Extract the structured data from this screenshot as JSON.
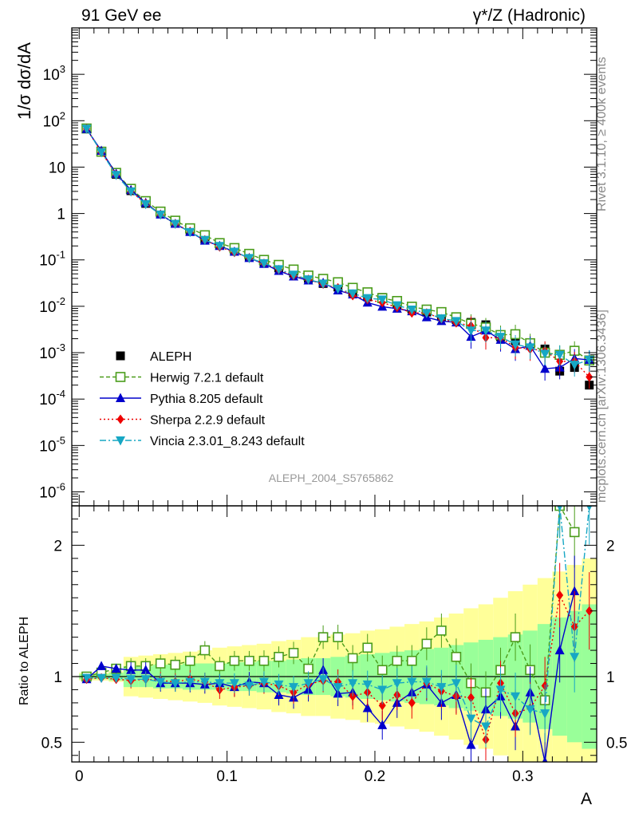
{
  "header": {
    "left": "91 GeV ee",
    "right": "γ*/Z (Hadronic)"
  },
  "side_text": {
    "rivet": "Rivet 3.1.10, ≥ 400k events",
    "mcplots": "mcplots.cern.ch [arXiv:1306.3436]"
  },
  "watermark": "ALEPH_2004_S5765862",
  "colors": {
    "data": "#000000",
    "herwig": "#4a9c1a",
    "pythia": "#0000cc",
    "sherpa": "#ee0000",
    "vincia": "#17a7c4",
    "band_outer": "#ffff99",
    "band_inner": "#99ff99"
  },
  "chart_data": [
    {
      "type": "scatter",
      "panel": "main",
      "ylabel": "1/σ  dσ/dA",
      "yscale": "log",
      "ylim": [
        5e-07,
        10000.0
      ],
      "xlim": [
        -0.005,
        0.35
      ],
      "y_tick_labels": [
        "10^-6",
        "10^-5",
        "10^-4",
        "10^-3",
        "10^-2",
        "10^-1",
        "1",
        "10",
        "10^2",
        "10^3"
      ],
      "x": [
        0.005,
        0.015,
        0.025,
        0.035,
        0.045,
        0.055,
        0.065,
        0.075,
        0.085,
        0.095,
        0.105,
        0.115,
        0.125,
        0.135,
        0.145,
        0.155,
        0.165,
        0.175,
        0.185,
        0.195,
        0.205,
        0.215,
        0.225,
        0.235,
        0.245,
        0.255,
        0.265,
        0.275,
        0.285,
        0.295,
        0.305,
        0.315,
        0.325,
        0.335,
        0.345
      ],
      "series": [
        {
          "name": "ALEPH",
          "style": "data",
          "values": [
            68,
            21,
            7,
            3.1,
            1.65,
            1.0,
            0.63,
            0.42,
            0.28,
            0.21,
            0.158,
            0.118,
            0.088,
            0.067,
            0.052,
            0.04,
            0.031,
            0.026,
            0.02,
            0.016,
            0.0155,
            0.011,
            0.0088,
            0.0075,
            0.006,
            0.0052,
            0.0045,
            0.004,
            0.0022,
            0.0018,
            0.0016,
            0.0012,
            0.0004,
            0.00048,
            0.0002
          ]
        },
        {
          "name": "Herwig 7.2.1 default",
          "style": "herwig",
          "values": [
            68,
            21.5,
            7.5,
            3.4,
            1.85,
            1.1,
            0.7,
            0.48,
            0.34,
            0.23,
            0.18,
            0.135,
            0.1,
            0.078,
            0.062,
            0.046,
            0.039,
            0.033,
            0.025,
            0.02,
            0.015,
            0.013,
            0.0098,
            0.0085,
            0.0075,
            0.0058,
            0.0042,
            0.0035,
            0.0024,
            0.0025,
            0.0016,
            0.001,
            0.0009,
            0.0011,
            0.00068
          ]
        },
        {
          "name": "Pythia 8.205 default",
          "style": "pythia",
          "values": [
            66,
            22.5,
            7.2,
            3.2,
            1.7,
            0.95,
            0.6,
            0.4,
            0.26,
            0.2,
            0.15,
            0.11,
            0.082,
            0.058,
            0.044,
            0.036,
            0.032,
            0.022,
            0.018,
            0.012,
            0.0098,
            0.0089,
            0.0078,
            0.0058,
            0.0048,
            0.0045,
            0.0022,
            0.003,
            0.0019,
            0.0012,
            0.0014,
            0.00045,
            0.00048,
            0.00075,
            0.0007
          ]
        },
        {
          "name": "Sherpa 2.2.9 default",
          "style": "sherpa",
          "values": [
            67,
            21,
            6.9,
            3.0,
            1.65,
            0.95,
            0.6,
            0.41,
            0.27,
            0.19,
            0.145,
            0.11,
            0.084,
            0.062,
            0.046,
            0.038,
            0.03,
            0.025,
            0.017,
            0.014,
            0.012,
            0.0095,
            0.0072,
            0.0072,
            0.0054,
            0.0044,
            0.0038,
            0.0021,
            0.0021,
            0.0013,
            0.0012,
            0.0011,
            0.00065,
            0.00065,
            0.0003
          ]
        },
        {
          "name": "Vincia 2.3.01_8.243 default",
          "style": "vincia",
          "values": [
            67,
            21,
            6.8,
            3.0,
            1.6,
            0.95,
            0.6,
            0.4,
            0.27,
            0.2,
            0.15,
            0.11,
            0.085,
            0.063,
            0.048,
            0.038,
            0.031,
            0.024,
            0.019,
            0.015,
            0.014,
            0.0105,
            0.0085,
            0.0072,
            0.0055,
            0.0048,
            0.003,
            0.003,
            0.0022,
            0.0015,
            0.0013,
            0.00095,
            0.0009,
            0.00055,
            0.0007
          ]
        }
      ],
      "legend_position": "bottom-left"
    },
    {
      "type": "line",
      "panel": "ratio",
      "ylabel": "Ratio to ALEPH",
      "xlabel": "A",
      "ylim": [
        0.35,
        2.3
      ],
      "xlim": [
        -0.005,
        0.35
      ],
      "x_tick_labels": [
        "0",
        "0.1",
        "0.2",
        "0.3"
      ],
      "y_tick_labels": [
        "0.5",
        "1",
        "2"
      ],
      "x": [
        0.005,
        0.015,
        0.025,
        0.035,
        0.045,
        0.055,
        0.065,
        0.075,
        0.085,
        0.095,
        0.105,
        0.115,
        0.125,
        0.135,
        0.145,
        0.155,
        0.165,
        0.175,
        0.185,
        0.195,
        0.205,
        0.215,
        0.225,
        0.235,
        0.245,
        0.255,
        0.265,
        0.275,
        0.285,
        0.295,
        0.305,
        0.315,
        0.325,
        0.335,
        0.345
      ],
      "band_outer": [
        0.03,
        0.03,
        0.04,
        0.15,
        0.16,
        0.17,
        0.18,
        0.19,
        0.2,
        0.22,
        0.23,
        0.24,
        0.25,
        0.27,
        0.28,
        0.3,
        0.3,
        0.32,
        0.33,
        0.35,
        0.36,
        0.38,
        0.4,
        0.42,
        0.45,
        0.48,
        0.52,
        0.55,
        0.6,
        0.65,
        0.7,
        0.75,
        0.8,
        0.85,
        0.9
      ],
      "band_inner": [
        0.02,
        0.02,
        0.03,
        0.08,
        0.08,
        0.09,
        0.09,
        0.1,
        0.1,
        0.1,
        0.11,
        0.11,
        0.12,
        0.12,
        0.13,
        0.14,
        0.14,
        0.15,
        0.16,
        0.17,
        0.18,
        0.19,
        0.2,
        0.21,
        0.22,
        0.24,
        0.26,
        0.28,
        0.3,
        0.32,
        0.35,
        0.4,
        0.45,
        0.5,
        0.55
      ],
      "series": [
        {
          "name": "Herwig 7.2.1 default",
          "style": "herwig",
          "values": [
            1.0,
            1.03,
            1.06,
            1.08,
            1.08,
            1.1,
            1.09,
            1.12,
            1.2,
            1.08,
            1.12,
            1.12,
            1.12,
            1.15,
            1.18,
            1.06,
            1.3,
            1.3,
            1.14,
            1.22,
            1.05,
            1.12,
            1.12,
            1.25,
            1.35,
            1.15,
            0.95,
            0.88,
            1.05,
            1.3,
            1.05,
            0.82,
            2.3,
            2.1,
            null
          ]
        },
        {
          "name": "Pythia 8.205 default",
          "style": "pythia",
          "values": [
            0.98,
            1.08,
            1.06,
            1.05,
            1.05,
            0.95,
            0.95,
            0.95,
            0.94,
            0.95,
            0.92,
            0.96,
            0.95,
            0.86,
            0.84,
            0.9,
            1.05,
            0.87,
            0.88,
            0.76,
            0.63,
            0.8,
            0.88,
            0.94,
            0.8,
            0.86,
            0.48,
            0.75,
            0.85,
            0.62,
            0.88,
            0.35,
            1.2,
            1.65,
            null
          ]
        },
        {
          "name": "Sherpa 2.2.9 default",
          "style": "sherpa",
          "values": [
            0.98,
            0.99,
            0.98,
            0.97,
            0.98,
            0.97,
            0.96,
            0.98,
            0.96,
            0.9,
            0.92,
            0.93,
            0.95,
            0.93,
            0.88,
            0.94,
            0.97,
            0.96,
            0.85,
            0.88,
            0.78,
            0.86,
            0.8,
            0.95,
            0.89,
            0.85,
            0.84,
            0.52,
            0.95,
            0.72,
            0.76,
            0.93,
            1.62,
            1.38,
            1.5
          ]
        },
        {
          "name": "Vincia 2.3.01_8.243 default",
          "style": "vincia",
          "values": [
            0.99,
            0.99,
            0.99,
            0.98,
            0.98,
            0.96,
            0.95,
            0.96,
            0.96,
            0.95,
            0.95,
            0.93,
            0.96,
            0.94,
            0.92,
            0.95,
            0.98,
            0.92,
            0.95,
            0.94,
            0.9,
            0.95,
            0.96,
            0.96,
            0.92,
            0.95,
            0.68,
            0.62,
            0.9,
            0.85,
            0.75,
            0.72,
            2.3,
            1.15,
            2.3
          ]
        }
      ]
    }
  ]
}
